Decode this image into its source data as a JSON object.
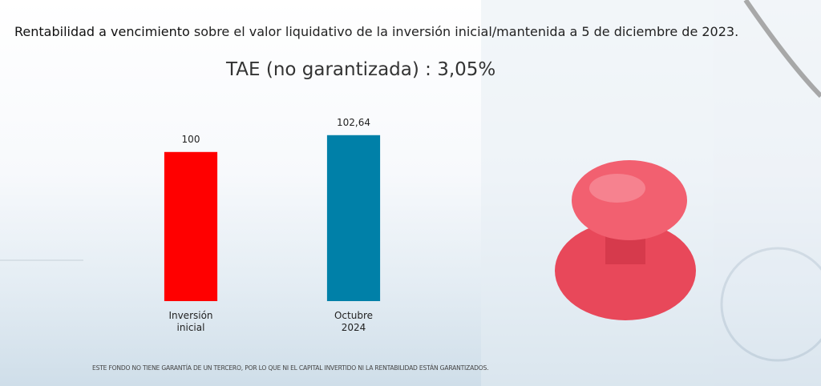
{
  "title_parts": [
    "Rentabilidad a vencimiento",
    "sobre el valor liquidativo de la inversión inicial/mantenida a 5 de diciembre de 2023."
  ],
  "chart_data": {
    "type": "bar",
    "title": "TAE (no garantizada) : 3,05%",
    "categories": [
      "Inversión inicial",
      "Octubre 2024"
    ],
    "values": [
      100,
      102.64
    ],
    "value_labels": [
      "100",
      "102,64"
    ],
    "colors": [
      "#ff0000",
      "#0080a8"
    ],
    "ylim": [
      76.6,
      105
    ]
  },
  "footnote": "ESTE FONDO NO TIENE GARANTÍA DE UN TERCERO, POR LO QUE NI EL CAPITAL INVERTIDO NI LA RENTABILIDAD ESTÁN GARANTIZADOS."
}
